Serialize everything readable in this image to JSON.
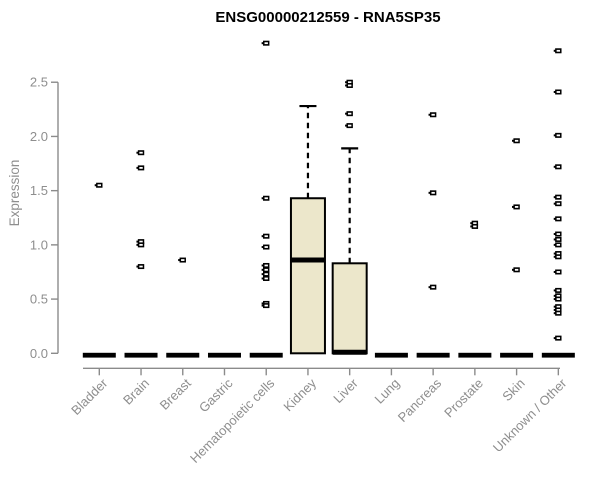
{
  "chart_data": {
    "type": "boxplot",
    "title": "ENSG00000212559 - RNA5SP35",
    "ylabel": "Expression",
    "xlabel": "",
    "ylim": [
      0.0,
      2.5
    ],
    "yticks": [
      "0.0",
      "0.5",
      "1.0",
      "1.5",
      "2.0",
      "2.5"
    ],
    "grid": false,
    "legend": "none",
    "colors": {
      "box_fill": "#ece7cb",
      "box_stroke": "#000000",
      "median": "#000000",
      "point": "#000000",
      "axis": "#8b8b8b",
      "tick_label": "#8e8e8e",
      "title": "#000000",
      "background": "#ffffff"
    },
    "categories": [
      "Bladder",
      "Brain",
      "Breast",
      "Gastric",
      "Hematopoietic cells",
      "Kidney",
      "Liver",
      "Lung",
      "Pancreas",
      "Prostate",
      "Skin",
      "Unknown / Other"
    ],
    "boxes": [
      {
        "category": "Bladder",
        "collapsed": true,
        "q1": 0,
        "median": 0,
        "q3": 0,
        "whisker_high": 0,
        "outliers": [
          1.55
        ]
      },
      {
        "category": "Brain",
        "collapsed": true,
        "q1": 0,
        "median": 0,
        "q3": 0,
        "whisker_high": 0,
        "outliers": [
          1.85,
          1.71,
          1.03,
          1.0,
          0.8
        ]
      },
      {
        "category": "Breast",
        "collapsed": true,
        "q1": 0,
        "median": 0,
        "q3": 0,
        "whisker_high": 0,
        "outliers": [
          0.86
        ]
      },
      {
        "category": "Gastric",
        "collapsed": true,
        "q1": 0,
        "median": 0,
        "q3": 0,
        "whisker_high": 0,
        "outliers": []
      },
      {
        "category": "Hematopoietic cells",
        "collapsed": true,
        "q1": 0,
        "median": 0,
        "q3": 0,
        "whisker_high": 0,
        "outliers": [
          2.86,
          1.43,
          1.08,
          0.98,
          0.81,
          0.77,
          0.73,
          0.69,
          0.46,
          0.44
        ]
      },
      {
        "category": "Kidney",
        "collapsed": false,
        "q1": 0,
        "median": 0.86,
        "q3": 1.43,
        "whisker_high": 2.28,
        "outliers": []
      },
      {
        "category": "Liver",
        "collapsed": false,
        "q1": 0,
        "median": 0.01,
        "q3": 0.83,
        "whisker_high": 1.89,
        "outliers": [
          2.5,
          2.47,
          2.21,
          2.1
        ]
      },
      {
        "category": "Lung",
        "collapsed": true,
        "q1": 0,
        "median": 0,
        "q3": 0,
        "whisker_high": 0,
        "outliers": []
      },
      {
        "category": "Pancreas",
        "collapsed": true,
        "q1": 0,
        "median": 0,
        "q3": 0,
        "whisker_high": 0,
        "outliers": [
          2.2,
          1.48,
          0.61
        ]
      },
      {
        "category": "Prostate",
        "collapsed": true,
        "q1": 0,
        "median": 0,
        "q3": 0,
        "whisker_high": 0,
        "outliers": [
          1.2,
          1.17
        ]
      },
      {
        "category": "Skin",
        "collapsed": true,
        "q1": 0,
        "median": 0,
        "q3": 0,
        "whisker_high": 0,
        "outliers": [
          1.96,
          1.35,
          0.77
        ]
      },
      {
        "category": "Unknown / Other",
        "collapsed": true,
        "q1": 0,
        "median": 0,
        "q3": 0,
        "whisker_high": 0,
        "outliers": [
          2.79,
          2.41,
          2.01,
          1.72,
          1.44,
          1.38,
          1.24,
          1.1,
          1.05,
          1.0,
          0.92,
          0.89,
          0.75,
          0.58,
          0.53,
          0.5,
          0.43,
          0.4,
          0.37,
          0.14
        ]
      }
    ]
  }
}
